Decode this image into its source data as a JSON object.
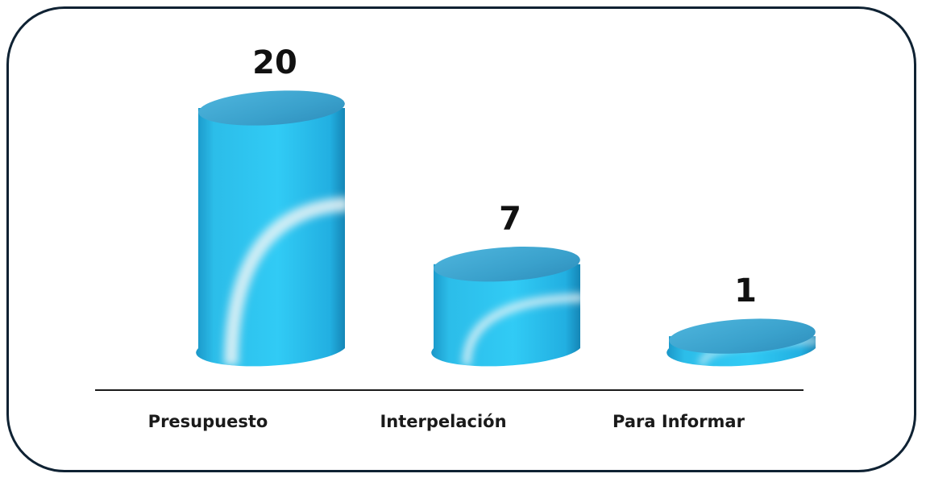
{
  "chart_data": {
    "type": "bar",
    "style": "3d-cylinder",
    "categories": [
      "Presupuesto",
      "Interpelación",
      "Para Informar"
    ],
    "values": [
      20,
      7,
      1
    ],
    "data_labels": [
      "20",
      "7",
      "1"
    ],
    "title": "",
    "xlabel": "",
    "ylabel": "",
    "ylim": [
      0,
      20
    ],
    "grid": false,
    "legend": "none",
    "colors": {
      "bar_main": "#29c6f2",
      "bar_dark": "#1a9fcf",
      "bar_top": "#3fa6d0",
      "highlight": "#eaf3f6",
      "axis": "#1a1a1a",
      "frame": "#0f2233"
    }
  }
}
